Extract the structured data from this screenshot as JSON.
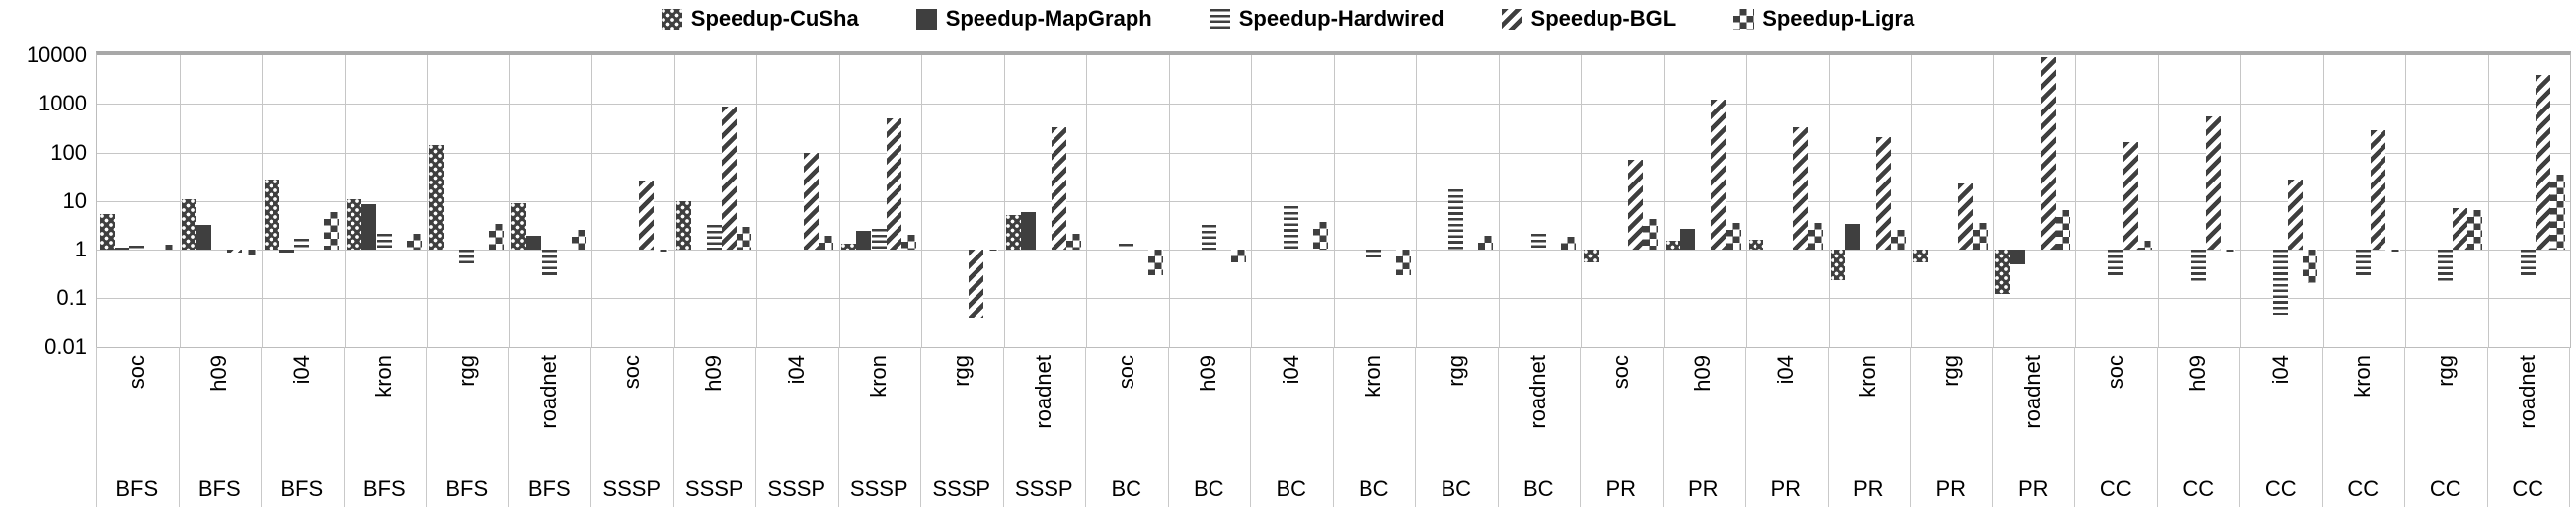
{
  "chart_data": {
    "type": "bar",
    "title": "",
    "xlabel": "",
    "ylabel": "",
    "scale": "log10",
    "ylim": [
      0.01,
      10000
    ],
    "grid": true,
    "legend_position": "top-center",
    "y_ticks": [
      "10000",
      "1000",
      "100",
      "10",
      "1",
      "0.1",
      "0.01"
    ],
    "bar_color": "#3f3f3f",
    "gridline_color": "#c6c6c6",
    "datasets_per_algorithm": [
      "soc",
      "h09",
      "i04",
      "kron",
      "rgg",
      "roadnet"
    ],
    "algorithms": [
      "BFS",
      "SSSP",
      "BC",
      "PR",
      "CC"
    ],
    "categories": [
      "soc",
      "h09",
      "i04",
      "kron",
      "rgg",
      "roadnet",
      "soc",
      "h09",
      "i04",
      "kron",
      "rgg",
      "roadnet",
      "soc",
      "h09",
      "i04",
      "kron",
      "rgg",
      "roadnet",
      "soc",
      "h09",
      "i04",
      "kron",
      "rgg",
      "roadnet",
      "soc",
      "h09",
      "i04",
      "kron",
      "rgg",
      "roadnet"
    ],
    "category_sections": [
      "BFS",
      "BFS",
      "BFS",
      "BFS",
      "BFS",
      "BFS",
      "SSSP",
      "SSSP",
      "SSSP",
      "SSSP",
      "SSSP",
      "SSSP",
      "BC",
      "BC",
      "BC",
      "BC",
      "BC",
      "BC",
      "PR",
      "PR",
      "PR",
      "PR",
      "PR",
      "PR",
      "CC",
      "CC",
      "CC",
      "CC",
      "CC",
      "CC"
    ],
    "baseline": 1,
    "series": [
      {
        "name": "Speedup-CuSha",
        "pattern": "dots-on-dark",
        "css": "p-cusha",
        "values": [
          5.4,
          11,
          28,
          11,
          140,
          9,
          1,
          10,
          1,
          1.3,
          1,
          5.2,
          1,
          1,
          1,
          1,
          1,
          1,
          0.55,
          1.5,
          1.6,
          0.24,
          0.55,
          0.12,
          1,
          1,
          1,
          1,
          1,
          1
        ]
      },
      {
        "name": "Speedup-MapGraph",
        "pattern": "solid",
        "css": "p-mapgraph",
        "values": [
          1.1,
          3.2,
          0.85,
          8.5,
          1,
          1.9,
          1,
          1,
          1,
          2.4,
          1,
          6,
          1,
          1,
          1,
          1,
          1,
          1,
          1,
          2.7,
          1,
          3.4,
          1,
          0.5,
          1,
          1,
          1,
          1,
          1,
          1
        ]
      },
      {
        "name": "Speedup-Hardwired",
        "pattern": "horizontal-stripes",
        "css": "p-hardwired",
        "values": [
          1.2,
          1,
          1.7,
          2.1,
          0.5,
          0.3,
          1,
          3.2,
          1,
          2.7,
          1,
          1,
          1.3,
          3.2,
          8,
          0.7,
          17,
          2.1,
          1,
          1,
          1,
          1,
          1,
          1,
          0.3,
          0.2,
          0.045,
          0.3,
          0.2,
          0.3
        ]
      },
      {
        "name": "Speedup-BGL",
        "pattern": "diagonal-stripes",
        "css": "p-bgl",
        "values": [
          1,
          0.85,
          1,
          1,
          1,
          1,
          26,
          900,
          100,
          500,
          0.04,
          330,
          1,
          1,
          1,
          1,
          1,
          1,
          70,
          1200,
          330,
          210,
          23,
          9000,
          160,
          550,
          28,
          280,
          7,
          4000
        ]
      },
      {
        "name": "Speedup-Ligra",
        "pattern": "checkerboard",
        "css": "p-ligra",
        "values": [
          1.25,
          0.8,
          6,
          2.1,
          3.3,
          2.6,
          0.9,
          3,
          1.9,
          2,
          0.95,
          2.1,
          0.3,
          0.55,
          3.7,
          0.3,
          1.9,
          1.8,
          4.2,
          3.5,
          3.5,
          2.6,
          3.5,
          6.5,
          1.5,
          0.9,
          0.2,
          0.9,
          6.5,
          35
        ]
      }
    ]
  },
  "layout_note": "values at 1 render as zero-height bars (log baseline = 1)"
}
